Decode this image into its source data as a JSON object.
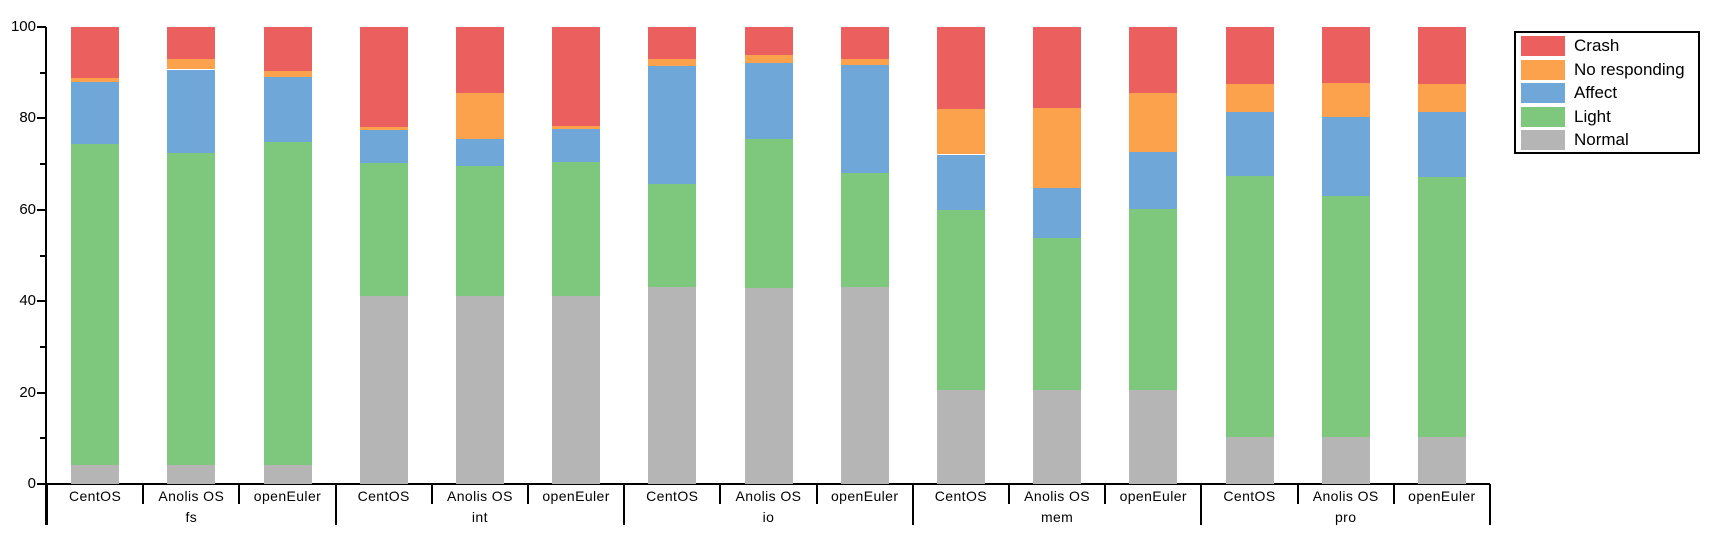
{
  "chart_data": {
    "type": "bar",
    "stacked": true,
    "title": "",
    "xlabel": "",
    "ylabel": "",
    "ylim": [
      0,
      100
    ],
    "yticks_major": [
      0,
      20,
      40,
      60,
      80,
      100
    ],
    "yticks_minor": [
      10,
      30,
      50,
      70,
      90
    ],
    "grid": false,
    "legend_position": "outside-top-right",
    "groups": [
      "fs",
      "int",
      "io",
      "mem",
      "pro"
    ],
    "bars_per_group": [
      "CentOS",
      "Anolis OS",
      "openEuler"
    ],
    "bar_labels": [
      "CentOS",
      "Anolis OS",
      "openEuler",
      "CentOS",
      "Anolis OS",
      "openEuler",
      "CentOS",
      "Anolis OS",
      "openEuler",
      "CentOS",
      "Anolis OS",
      "openEuler",
      "CentOS",
      "Anolis OS",
      "openEuler"
    ],
    "stack_order_bottom_to_top": [
      "Normal",
      "Light",
      "Affect",
      "No responding",
      "Crash"
    ],
    "series": [
      {
        "name": "Crash",
        "color": "#EB5F5F",
        "values": [
          11.1,
          6.9,
          9.6,
          21.8,
          14.5,
          21.7,
          7.1,
          6.1,
          7.0,
          18.0,
          17.8,
          14.4,
          12.5,
          12.2,
          12.5
        ]
      },
      {
        "name": "No responding",
        "color": "#FCA24D",
        "values": [
          0.9,
          2.4,
          1.3,
          0.7,
          10.1,
          0.7,
          1.4,
          1.8,
          1.3,
          9.9,
          17.4,
          12.9,
          6.0,
          7.6,
          6.0
        ]
      },
      {
        "name": "Affect",
        "color": "#6FA7D8",
        "values": [
          13.7,
          18.2,
          14.3,
          7.2,
          5.8,
          7.2,
          25.9,
          16.7,
          23.7,
          12.1,
          10.9,
          12.5,
          14.1,
          17.2,
          14.3
        ]
      },
      {
        "name": "Light",
        "color": "#7EC87E",
        "values": [
          70.1,
          68.3,
          70.6,
          29.1,
          28.4,
          29.2,
          22.6,
          32.6,
          24.8,
          39.4,
          33.3,
          39.6,
          57.1,
          52.7,
          56.9
        ]
      },
      {
        "name": "Normal",
        "color": "#B5B5B5",
        "values": [
          4.2,
          4.2,
          4.2,
          41.2,
          41.2,
          41.2,
          43.0,
          42.8,
          43.2,
          20.6,
          20.6,
          20.6,
          10.3,
          10.3,
          10.3
        ]
      }
    ]
  }
}
